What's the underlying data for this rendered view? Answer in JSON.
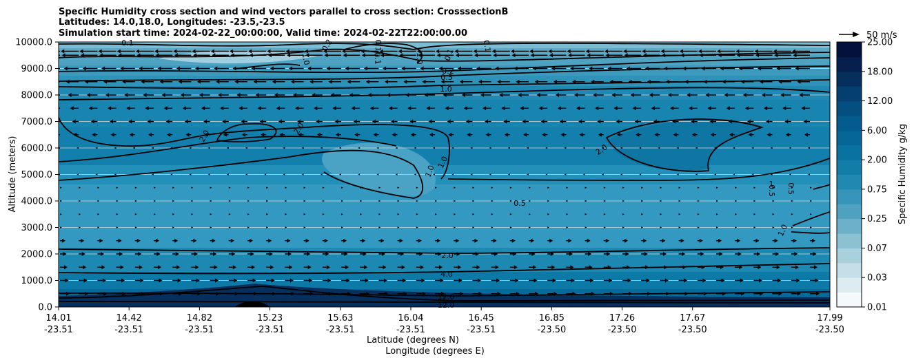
{
  "chart_data": {
    "type": "contour",
    "title_lines": [
      "Specific Humidity cross section and wind vectors parallel to cross section: CrosssectionB",
      "Latitudes: 14.0,18.0, Longitudes: -23.5,-23.5",
      "Simulation start time: 2024-02-22_00:00:00, Valid time: 2024-02-22T22:00:00.00"
    ],
    "ylabel": "Altitude (meters)",
    "xlabel_lat": "Latitude (degrees N)",
    "xlabel_lon": "Longitude (degrees E)",
    "ylim": [
      0,
      10000
    ],
    "y_ticks": [
      "0.0",
      "1000.0",
      "2000.0",
      "3000.0",
      "4000.0",
      "5000.0",
      "6000.0",
      "7000.0",
      "8000.0",
      "9000.0",
      "10000.0"
    ],
    "x_ticks": [
      {
        "lat": "14.01",
        "lon": "-23.51"
      },
      {
        "lat": "14.42",
        "lon": "-23.51"
      },
      {
        "lat": "14.82",
        "lon": "-23.51"
      },
      {
        "lat": "15.23",
        "lon": "-23.51"
      },
      {
        "lat": "15.63",
        "lon": "-23.51"
      },
      {
        "lat": "16.04",
        "lon": "-23.51"
      },
      {
        "lat": "16.45",
        "lon": "-23.51"
      },
      {
        "lat": "16.85",
        "lon": "-23.50"
      },
      {
        "lat": "17.26",
        "lon": "-23.50"
      },
      {
        "lat": "17.67",
        "lon": "-23.50"
      },
      {
        "lat": "17.99",
        "lon": "-23.50"
      }
    ],
    "colorbar": {
      "label": "Specific Humidity g/kg",
      "levels": [
        "0.01",
        "0.03",
        "0.07",
        "0.25",
        "0.75",
        "2.00",
        "6.00",
        "12.00",
        "18.00",
        "25.00"
      ],
      "colors": [
        "#f4fafb",
        "#dcecf0",
        "#c4dfe7",
        "#a9d0dd",
        "#8cc1d3",
        "#6cb0c9",
        "#4fa1c0",
        "#3795b9",
        "#2188b1",
        "#137da9",
        "#0a72a0",
        "#066797",
        "#035c8d",
        "#044f82",
        "#053f6f",
        "#062f5d",
        "#071f4c",
        "#05113d"
      ]
    },
    "quiver_key": {
      "label": "50 m/s",
      "value": 50
    },
    "contour_labels": [
      "0.1",
      "0.2",
      "0.5",
      "1.0",
      "2.0",
      "4.0",
      "12.0"
    ],
    "contour_label_texts": [
      "0.1",
      "0.2",
      "1.0",
      "0.1",
      "0.1",
      "1.0",
      "0.1",
      "0.1",
      "0.2",
      "0.5",
      "1.0",
      "2.0",
      "2.0",
      "1.0",
      "1.0",
      "2.0",
      "0.5",
      "1",
      "0.5",
      "0.5",
      "1.0",
      "2.0",
      "4.0",
      "12.0",
      "12.0"
    ],
    "wind_rows": [
      {
        "altitude": 9650,
        "u": -14
      },
      {
        "altitude": 9500,
        "u": -13
      },
      {
        "altitude": 9000,
        "u": -11
      },
      {
        "altitude": 8500,
        "u": -9
      },
      {
        "altitude": 8000,
        "u": -7
      },
      {
        "altitude": 7500,
        "u": -5
      },
      {
        "altitude": 7000,
        "u": -3
      },
      {
        "altitude": 6500,
        "u": -2
      },
      {
        "altitude": 6000,
        "u": -1
      },
      {
        "altitude": 5000,
        "u": -1
      },
      {
        "altitude": 4500,
        "u": 1
      },
      {
        "altitude": 4000,
        "u": 1
      },
      {
        "altitude": 3500,
        "u": 1
      },
      {
        "altitude": 3000,
        "u": 1
      },
      {
        "altitude": 2500,
        "u": 2
      },
      {
        "altitude": 2000,
        "u": 3
      },
      {
        "altitude": 1500,
        "u": 4
      },
      {
        "altitude": 1000,
        "u": 5
      },
      {
        "altitude": 500,
        "u": 6
      }
    ]
  }
}
